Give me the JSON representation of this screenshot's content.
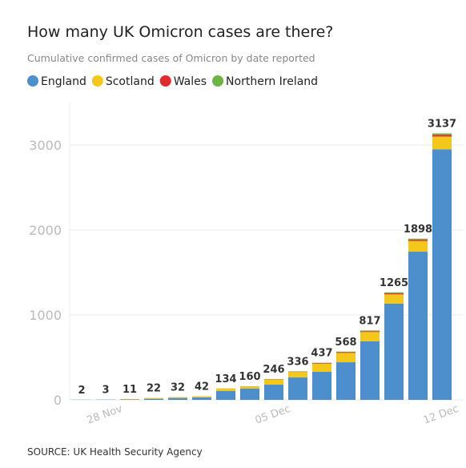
{
  "chart_data": {
    "type": "stacked_bar",
    "title": "How many UK Omicron cases are there?",
    "subtitle": "Cumulative confirmed cases of Omicron by date reported",
    "source": "SOURCE: UK Health Security Agency",
    "categories": [
      null,
      "28 Nov",
      null,
      null,
      null,
      null,
      null,
      null,
      "05 Dec",
      null,
      null,
      null,
      null,
      null,
      null,
      "12 Dec"
    ],
    "series": [
      {
        "name": "England",
        "color": "#4d8fcc",
        "values": [
          2,
          3,
          5,
          13,
          22,
          30,
          104,
          132,
          179,
          264,
          330,
          443,
          689,
          1132,
          1745,
          2950
        ]
      },
      {
        "name": "Scotland",
        "color": "#f3c81b",
        "values": [
          0,
          0,
          6,
          9,
          9,
          11,
          28,
          24,
          60,
          65,
          95,
          110,
          110,
          110,
          125,
          150
        ]
      },
      {
        "name": "Wales",
        "color": "#e2292b",
        "values": [
          0,
          0,
          0,
          0,
          1,
          1,
          1,
          2,
          4,
          4,
          7,
          8,
          10,
          12,
          15,
          20
        ]
      },
      {
        "name": "Northern Ireland",
        "color": "#6bb445",
        "values": [
          0,
          0,
          0,
          0,
          0,
          0,
          1,
          2,
          3,
          3,
          5,
          7,
          8,
          11,
          13,
          17
        ]
      }
    ],
    "totals": [
      2,
      3,
      11,
      22,
      32,
      42,
      134,
      160,
      246,
      336,
      437,
      568,
      817,
      1265,
      1898,
      3137
    ],
    "ylim": [
      0,
      3500
    ],
    "yticks": [
      0,
      1000,
      2000,
      3000
    ],
    "grid": true
  }
}
